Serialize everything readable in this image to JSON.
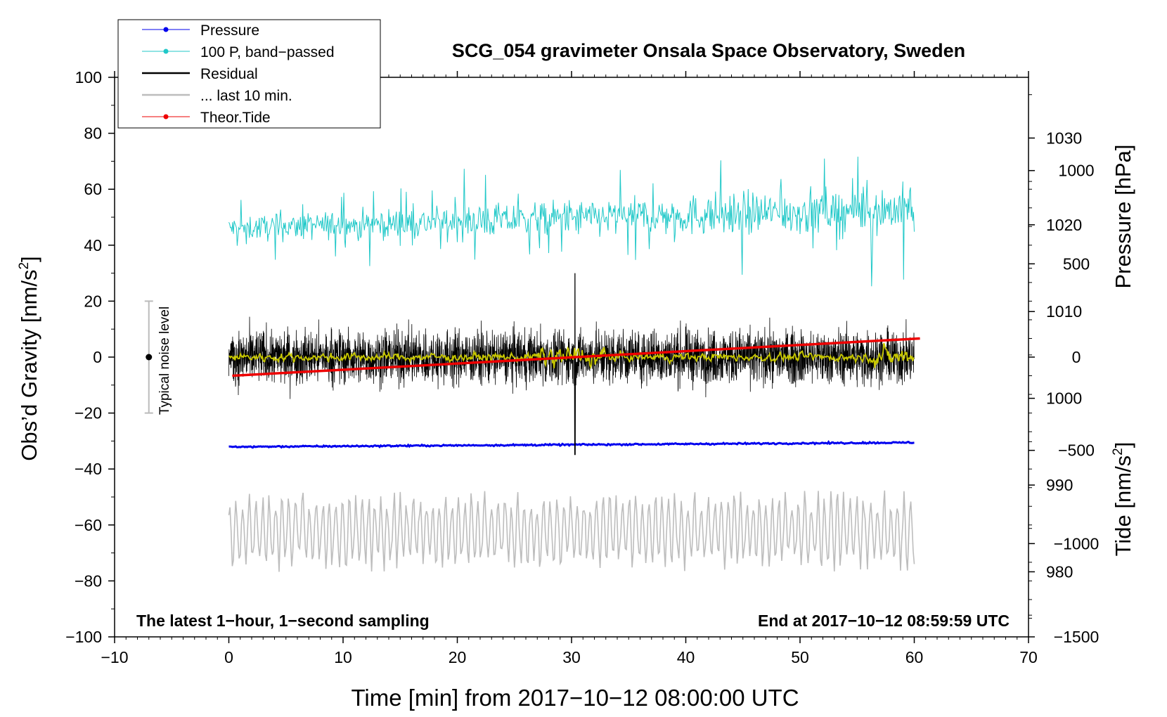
{
  "chart_data": {
    "type": "line",
    "title": "SCG_054 gravimeter Onsala Space Observatory, Sweden",
    "xlabel": "Time [min] from 2017−10−12 08:00:00 UTC",
    "ylabel_left": "Obs’d Gravity [nm/s",
    "ylabel_left_sup": "2",
    "ylabel_left_end": "]",
    "ylabel_right_pressure": "Pressure [hPa]",
    "ylabel_right_tide": "Tide [nm/s",
    "ylabel_right_tide_sup": "2",
    "ylabel_right_tide_end": "]",
    "xlim": [
      -10,
      70
    ],
    "ylim": [
      -100,
      100
    ],
    "pressure_lim": [
      972.5,
      1037
    ],
    "tide_lim": [
      -1500,
      1500
    ],
    "x_ticks": [
      "−10",
      "0",
      "10",
      "20",
      "30",
      "40",
      "50",
      "60",
      "70"
    ],
    "y_ticks": [
      "−100",
      "−80",
      "−60",
      "−40",
      "−20",
      "0",
      "20",
      "40",
      "60",
      "80",
      "100"
    ],
    "pressure_ticks": [
      "980",
      "990",
      "1000",
      "1010",
      "1020",
      "1030"
    ],
    "tide_ticks": [
      "−1500",
      "−1000",
      "−500",
      "0",
      "500",
      "1000"
    ],
    "noise_bar": {
      "label": "Typical noise level",
      "x": -7,
      "center": 0,
      "half_range": 20
    },
    "note_left": "The latest 1−hour, 1−second sampling",
    "note_right": "End at 2017−10−12 08:59:59 UTC",
    "legend": [
      {
        "label": "Pressure",
        "color": "#0000ee",
        "marker": true
      },
      {
        "label": "100 P, band−passed",
        "color": "#20c8c8",
        "marker": true
      },
      {
        "label": "Residual",
        "color": "#000000",
        "marker": false
      },
      {
        "label": "... last 10 min.",
        "color": "#bdbdbd",
        "marker": false
      },
      {
        "label": "Theor.Tide",
        "color": "#ee0000",
        "marker": true
      }
    ],
    "series": [
      {
        "name": "Pressure",
        "axis": "pressure",
        "color": "#0000ee",
        "start": 994.4,
        "end": 994.9,
        "noise": 0.15
      },
      {
        "name": "100 P, band−passed",
        "axis": "gravity",
        "color": "#20c8c8",
        "center_start": 46,
        "center_end": 53,
        "amp_start": 4,
        "amp_end": 8
      },
      {
        "name": "Residual",
        "axis": "gravity",
        "color": "#000000",
        "center": 0,
        "amp": 8
      },
      {
        "name": "Residual smoothed",
        "axis": "gravity",
        "color": "#c8c800",
        "center": 0,
        "amp": 1.2
      },
      {
        "name": "... last 10 min.",
        "axis": "gravity",
        "color": "#bdbdbd",
        "center": -62,
        "amp": 10
      },
      {
        "name": "Theor.Tide",
        "axis": "tide",
        "color": "#ee0000",
        "start": -100,
        "end": 100
      }
    ]
  }
}
